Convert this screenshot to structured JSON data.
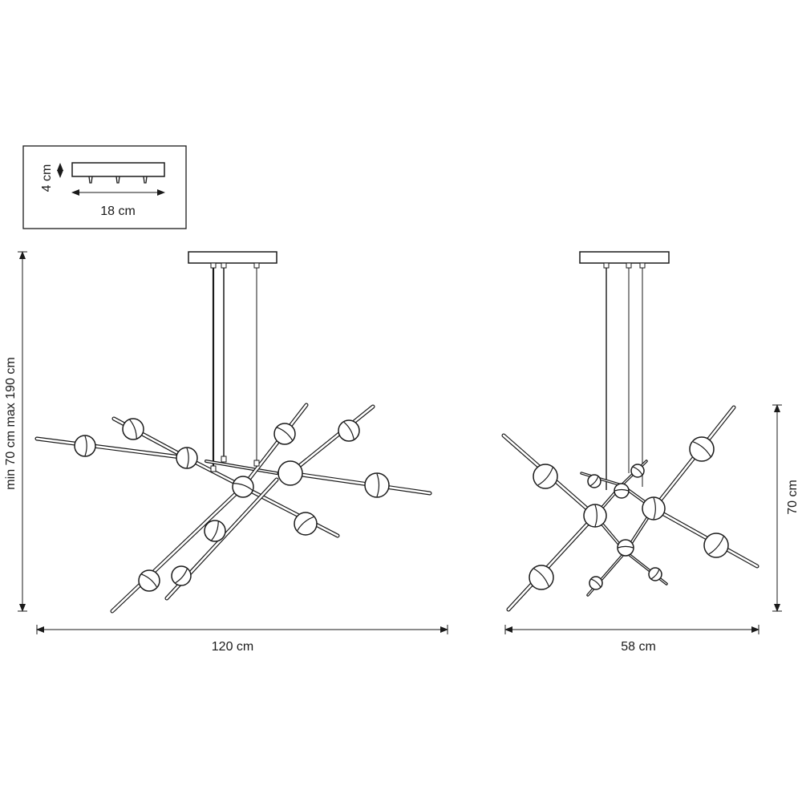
{
  "inset": {
    "height_label": "4 cm",
    "width_label": "18 cm"
  },
  "front_view": {
    "height_label": "min 70 cm max 190 cm",
    "width_label": "120 cm"
  },
  "side_view": {
    "height_label": "70 cm",
    "width_label": "58 cm"
  },
  "colors": {
    "line": "#1a1a1a",
    "background": "#ffffff"
  }
}
